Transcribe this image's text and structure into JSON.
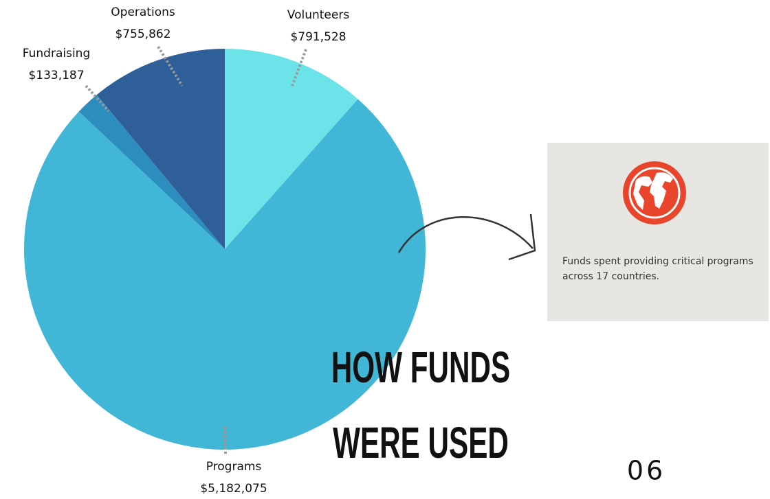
{
  "chart_data": {
    "type": "pie",
    "title": [
      "HOW FUNDS",
      "WERE USED"
    ],
    "categories": [
      "Volunteers",
      "Programs",
      "Fundraising",
      "Operations"
    ],
    "values": [
      791528,
      5182075,
      133187,
      755862
    ],
    "value_labels": [
      "$791,528",
      "$5,182,075",
      "$133,187",
      "$755,862"
    ],
    "colors": [
      "#6be3e8",
      "#42b6d6",
      "#2d8dbf",
      "#2e5f98"
    ]
  },
  "card": {
    "text": "Funds spent providing critical programs across 17 countries."
  },
  "page_number": "06"
}
